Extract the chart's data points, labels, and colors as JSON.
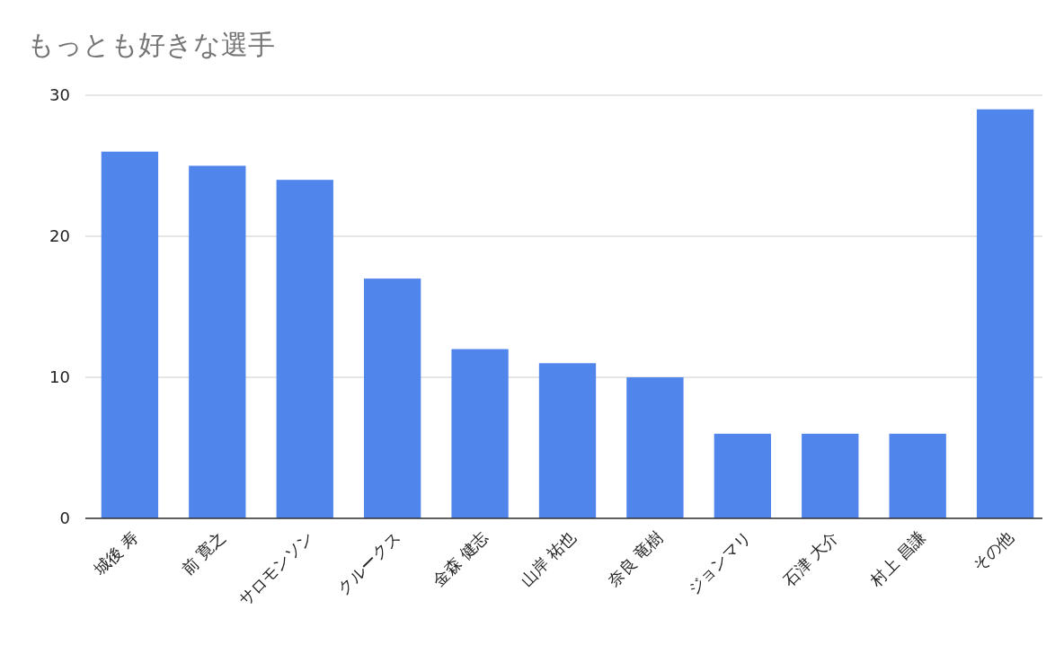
{
  "chart_data": {
    "type": "bar",
    "title": "もっとも好きな選手",
    "categories": [
      "城後 寿",
      "前 寛之",
      "サロモンソン",
      "クルークス",
      "金森 健志",
      "山岸 祐也",
      "奈良 竜樹",
      "ジョンマリ",
      "石津 大介",
      "村上 昌謙",
      "その他"
    ],
    "values": [
      26,
      25,
      24,
      17,
      12,
      11,
      10,
      6,
      6,
      6,
      29
    ],
    "color": "#5085ec",
    "ylim": [
      0,
      30
    ],
    "yticks": [
      0,
      10,
      20,
      30
    ],
    "grid": "y"
  }
}
